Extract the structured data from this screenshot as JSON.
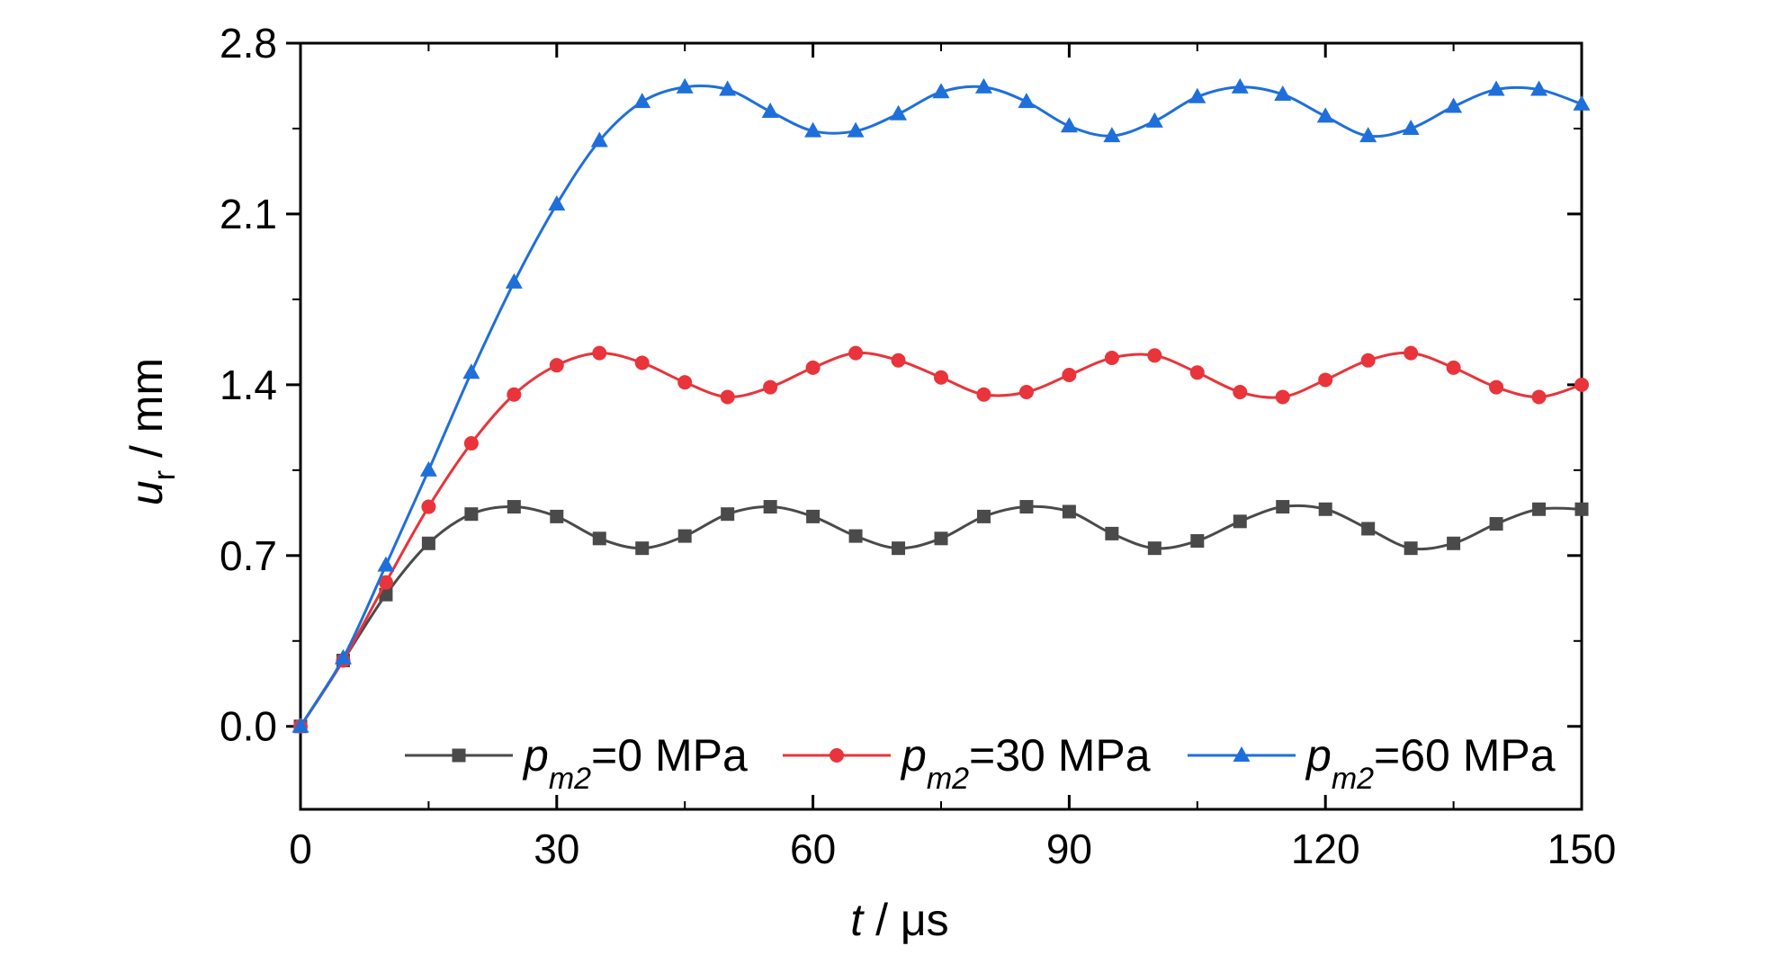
{
  "chart_data": {
    "type": "line",
    "xlabel": {
      "var": "t",
      "unit": " / μs"
    },
    "ylabel": {
      "var": "u",
      "sub": "r",
      "unit": " / mm"
    },
    "xlim": [
      0,
      150
    ],
    "ylim": [
      -0.34,
      2.8
    ],
    "xticks": [
      0,
      30,
      60,
      90,
      120,
      150
    ],
    "xtick_labels": [
      "0",
      "30",
      "60",
      "90",
      "120",
      "150"
    ],
    "yticks": [
      0.0,
      0.7,
      1.4,
      2.1,
      2.8
    ],
    "ytick_labels": [
      "0.0",
      "0.7",
      "1.4",
      "2.1",
      "2.8"
    ],
    "grid": false,
    "legend_position": "bottom",
    "x": [
      0,
      5,
      10,
      15,
      20,
      25,
      30,
      35,
      40,
      45,
      50,
      55,
      60,
      65,
      70,
      75,
      80,
      85,
      90,
      95,
      100,
      105,
      110,
      115,
      120,
      125,
      130,
      135,
      140,
      145,
      150
    ],
    "series": [
      {
        "name": "=0 MPa",
        "label_var": "p",
        "label_sub": "m2",
        "color": "#4a4a4a",
        "marker": "square",
        "values": [
          0.0,
          0.27,
          0.54,
          0.75,
          0.87,
          0.9,
          0.86,
          0.77,
          0.73,
          0.78,
          0.87,
          0.9,
          0.86,
          0.78,
          0.73,
          0.77,
          0.86,
          0.9,
          0.88,
          0.79,
          0.73,
          0.76,
          0.84,
          0.9,
          0.89,
          0.81,
          0.73,
          0.75,
          0.83,
          0.89,
          0.89
        ]
      },
      {
        "name": "=30 MPa",
        "label_var": "p",
        "label_sub": "m2",
        "color": "#e8343a",
        "marker": "circle",
        "values": [
          0.0,
          0.27,
          0.59,
          0.9,
          1.16,
          1.36,
          1.48,
          1.53,
          1.49,
          1.41,
          1.35,
          1.39,
          1.47,
          1.53,
          1.5,
          1.43,
          1.36,
          1.37,
          1.44,
          1.51,
          1.52,
          1.45,
          1.37,
          1.35,
          1.42,
          1.5,
          1.53,
          1.47,
          1.39,
          1.35,
          1.4
        ]
      },
      {
        "name": "=60 MPa",
        "label_var": "p",
        "label_sub": "m2",
        "color": "#1f6fdb",
        "marker": "triangle",
        "values": [
          0.0,
          0.28,
          0.66,
          1.05,
          1.45,
          1.82,
          2.14,
          2.4,
          2.56,
          2.62,
          2.61,
          2.52,
          2.44,
          2.44,
          2.51,
          2.6,
          2.62,
          2.56,
          2.46,
          2.42,
          2.48,
          2.58,
          2.62,
          2.59,
          2.5,
          2.42,
          2.45,
          2.54,
          2.61,
          2.61,
          2.55
        ]
      }
    ]
  }
}
